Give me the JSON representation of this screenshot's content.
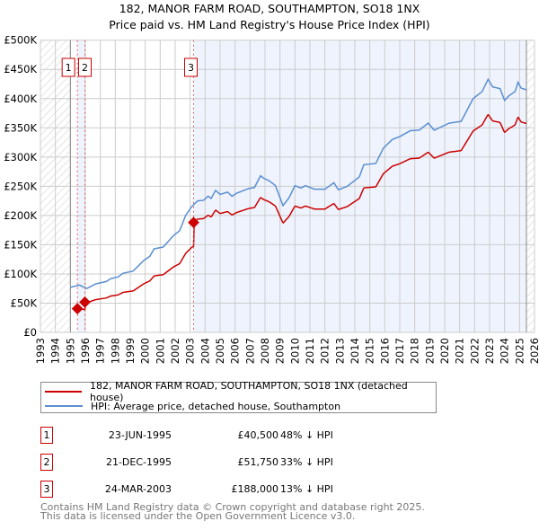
{
  "chart_data": {
    "type": "line",
    "title": "182, MANOR FARM ROAD, SOUTHAMPTON, SO18 1NX",
    "subtitle": "Price paid vs. HM Land Registry's House Price Index (HPI)",
    "xlim": [
      1993,
      2026
    ],
    "ylim": [
      0,
      500000
    ],
    "x_ticks": [
      "1993",
      "1994",
      "1995",
      "1996",
      "1997",
      "1998",
      "1999",
      "2000",
      "2001",
      "2002",
      "2003",
      "2004",
      "2005",
      "2006",
      "2007",
      "2008",
      "2009",
      "2010",
      "2011",
      "2012",
      "2013",
      "2014",
      "2015",
      "2016",
      "2017",
      "2018",
      "2019",
      "2020",
      "2021",
      "2022",
      "2023",
      "2024",
      "2025",
      "2026"
    ],
    "y_ticks": [
      {
        "v": 0,
        "label": "£0"
      },
      {
        "v": 50000,
        "label": "£50K"
      },
      {
        "v": 100000,
        "label": "£100K"
      },
      {
        "v": 150000,
        "label": "£150K"
      },
      {
        "v": 200000,
        "label": "£200K"
      },
      {
        "v": 250000,
        "label": "£250K"
      },
      {
        "v": 300000,
        "label": "£300K"
      },
      {
        "v": 350000,
        "label": "£350K"
      },
      {
        "v": 400000,
        "label": "£400K"
      },
      {
        "v": 450000,
        "label": "£450K"
      },
      {
        "v": 500000,
        "label": "£500K"
      }
    ],
    "grid": true,
    "data_range": [
      1995.0,
      2025.46
    ],
    "series": [
      {
        "name": "182, MANOR FARM ROAD, SOUTHAMPTON, SO18 1NX (detached house)",
        "color": "#cc0000",
        "derived_from": "sales"
      },
      {
        "name": "HPI: Average price, detached house, Southampton",
        "color": "#5b8fd0",
        "points": [
          [
            1995.0,
            77000
          ],
          [
            1995.6,
            81000
          ],
          [
            1996.1,
            75000
          ],
          [
            1996.7,
            83000
          ],
          [
            1997.4,
            87000
          ],
          [
            1997.7,
            92000
          ],
          [
            1998.2,
            95000
          ],
          [
            1998.5,
            101000
          ],
          [
            1999.2,
            105000
          ],
          [
            1999.9,
            123000
          ],
          [
            2000.3,
            130000
          ],
          [
            2000.6,
            143000
          ],
          [
            2001.2,
            146000
          ],
          [
            2001.9,
            166000
          ],
          [
            2002.3,
            174000
          ],
          [
            2002.7,
            200000
          ],
          [
            2003.1,
            215000
          ],
          [
            2003.5,
            225000
          ],
          [
            2003.9,
            226000
          ],
          [
            2004.2,
            233000
          ],
          [
            2004.4,
            229000
          ],
          [
            2004.7,
            243000
          ],
          [
            2005.0,
            236000
          ],
          [
            2005.5,
            240000
          ],
          [
            2005.8,
            233000
          ],
          [
            2006.1,
            238000
          ],
          [
            2006.9,
            246000
          ],
          [
            2007.3,
            248000
          ],
          [
            2007.7,
            268000
          ],
          [
            2007.9,
            264000
          ],
          [
            2008.3,
            259000
          ],
          [
            2008.7,
            251000
          ],
          [
            2009.2,
            217000
          ],
          [
            2009.6,
            230000
          ],
          [
            2010.0,
            251000
          ],
          [
            2010.4,
            247000
          ],
          [
            2010.7,
            251000
          ],
          [
            2011.3,
            245000
          ],
          [
            2012.0,
            245000
          ],
          [
            2012.6,
            256000
          ],
          [
            2012.9,
            244000
          ],
          [
            2013.5,
            250000
          ],
          [
            2014.3,
            266000
          ],
          [
            2014.6,
            287000
          ],
          [
            2015.4,
            289000
          ],
          [
            2015.9,
            315000
          ],
          [
            2016.5,
            330000
          ],
          [
            2017.0,
            335000
          ],
          [
            2017.7,
            345000
          ],
          [
            2018.3,
            346000
          ],
          [
            2018.9,
            358000
          ],
          [
            2019.3,
            346000
          ],
          [
            2020.3,
            358000
          ],
          [
            2021.1,
            361000
          ],
          [
            2021.9,
            400000
          ],
          [
            2022.5,
            412000
          ],
          [
            2022.9,
            433000
          ],
          [
            2023.2,
            420000
          ],
          [
            2023.7,
            417000
          ],
          [
            2024.0,
            397000
          ],
          [
            2024.3,
            405000
          ],
          [
            2024.7,
            412000
          ],
          [
            2024.9,
            428000
          ],
          [
            2025.1,
            418000
          ],
          [
            2025.46,
            415000
          ]
        ]
      }
    ],
    "sales": [
      {
        "n": "1",
        "year": 1995.47,
        "price": 40500
      },
      {
        "n": "2",
        "year": 1995.97,
        "price": 51750
      },
      {
        "n": "3",
        "year": 2003.23,
        "price": 188000
      }
    ],
    "legend_placement": "below"
  },
  "title_line1": "182, MANOR FARM ROAD, SOUTHAMPTON, SO18 1NX",
  "title_line2": "Price paid vs. HM Land Registry's House Price Index (HPI)",
  "legend": {
    "red": "182, MANOR FARM ROAD, SOUTHAMPTON, SO18 1NX (detached house)",
    "blue": "HPI: Average price, detached house, Southampton"
  },
  "transactions": [
    {
      "n": "1",
      "date": "23-JUN-1995",
      "price": "£40,500",
      "hpi": "48% ↓ HPI"
    },
    {
      "n": "2",
      "date": "21-DEC-1995",
      "price": "£51,750",
      "hpi": "33% ↓ HPI"
    },
    {
      "n": "3",
      "date": "24-MAR-2003",
      "price": "£188,000",
      "hpi": "13% ↓ HPI"
    }
  ],
  "footer": {
    "line1": "Contains HM Land Registry data © Crown copyright and database right 2025.",
    "line2": "This data is licensed under the Open Government Licence v3.0."
  }
}
